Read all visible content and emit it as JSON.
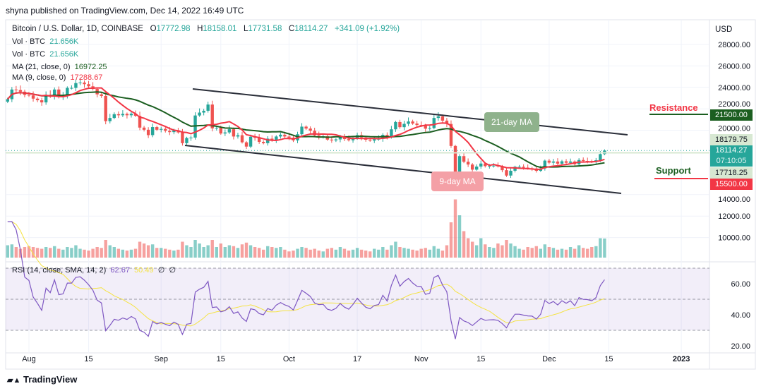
{
  "publish_line": "shyna published on TradingView.com, Dec 14, 2022 16:49 UTC",
  "legend": {
    "symbol": "Bitcoin / U.S. Dollar, 1D, COINBASE",
    "o_label": "O",
    "o": "17772.98",
    "h_label": "H",
    "h": "18158.01",
    "l_label": "L",
    "l": "17731.58",
    "c_label": "C",
    "c": "18114.27",
    "change": "+341.09 (+1.92%)",
    "vol1_label": "Vol · BTC",
    "vol1": "21.656K",
    "vol2_label": "Vol · BTC",
    "vol2": "21.656K",
    "ma21_label": "MA (21, close, 0)",
    "ma21": "16972.25",
    "ma9_label": "MA (9, close, 0)",
    "ma9": "17288.67"
  },
  "rsi_legend": {
    "label": "RSI (14, close, SMA, 14, 2)",
    "rsi": "62.67",
    "sma": "50.49",
    "extra1": "∅",
    "extra2": "∅"
  },
  "currency": "USD",
  "price_ticks": [
    "28000.00",
    "26000.00",
    "24000.00",
    "22000.00",
    "20000.00",
    "14000.00",
    "12000.00",
    "10000.00"
  ],
  "price_tick_values": [
    28000,
    26000,
    24000,
    22000,
    20000,
    14000,
    12000,
    10000
  ],
  "rsi_ticks": [
    "60.00",
    "40.00",
    "20.00"
  ],
  "rsi_tick_values": [
    60,
    40,
    20
  ],
  "badges": {
    "resistance": "21500.00",
    "high_ma": "18179.75",
    "last": "18114.27",
    "countdown": "07:10:05",
    "low_ma": "17718.25",
    "support": "15500.00"
  },
  "annotations": {
    "resistance": "Resistance",
    "support": "Support",
    "ma21": "21-day MA",
    "ma9": "9-day MA"
  },
  "time_ticks": [
    {
      "label": "Aug",
      "day": 5
    },
    {
      "label": "15",
      "day": 19
    },
    {
      "label": "Sep",
      "day": 36
    },
    {
      "label": "15",
      "day": 50
    },
    {
      "label": "Oct",
      "day": 66
    },
    {
      "label": "17",
      "day": 82
    },
    {
      "label": "Nov",
      "day": 97
    },
    {
      "label": "15",
      "day": 111
    },
    {
      "label": "Dec",
      "day": 127
    },
    {
      "label": "15",
      "day": 141
    },
    {
      "label": "2023",
      "day": 158
    }
  ],
  "colors": {
    "up": "#26a69a",
    "down": "#ef5350",
    "ma21": "#1b5e20",
    "ma9": "#f23645",
    "rsi": "#7e57c2",
    "rsi_sma": "#f5e342",
    "resistance_text": "#f23645",
    "support_text": "#1b5e20"
  },
  "brand": "TradingView",
  "chart_data": {
    "type": "candlestick",
    "start_date": "2022-07-27",
    "closes": [
      22900,
      23800,
      23750,
      23600,
      23300,
      23250,
      22950,
      22800,
      22600,
      23300,
      23150,
      23800,
      23150,
      23200,
      23950,
      23950,
      24400,
      24450,
      24300,
      24100,
      23850,
      23350,
      23200,
      20850,
      21150,
      21500,
      21400,
      21530,
      21400,
      21550,
      21350,
      20250,
      20050,
      19550,
      20300,
      20050,
      20130,
      19950,
      19830,
      19990,
      19800,
      18800,
      19280,
      19320,
      21380,
      21650,
      21820,
      22400,
      20180,
      20230,
      19700,
      19800,
      20100,
      19420,
      19540,
      18880,
      18480,
      19400,
      19300,
      18920,
      18800,
      19220,
      19080,
      19420,
      19590,
      19420,
      19310,
      19060,
      19630,
      20340,
      20160,
      19960,
      19530,
      19420,
      19440,
      19130,
      19060,
      19150,
      19380,
      19180,
      19070,
      19270,
      19550,
      19330,
      19120,
      19040,
      19170,
      19200,
      19570,
      19340,
      20090,
      20770,
      20290,
      20600,
      20820,
      20630,
      20490,
      20480,
      20150,
      20210,
      21150,
      21300,
      20900,
      20590,
      18540,
      15880,
      17590,
      17070,
      16810,
      16330,
      16620,
      16900,
      16660,
      16690,
      16700,
      16630,
      16280,
      15780,
      16230,
      16600,
      16600,
      16520,
      16460,
      16440,
      16220,
      16440,
      17170,
      16980,
      17090,
      16890,
      17110,
      16970,
      17090,
      16840,
      17230,
      17140,
      17130,
      17080,
      17210,
      17780,
      18114.27
    ],
    "volumes_k": [
      14,
      15,
      12,
      10,
      12,
      13,
      12,
      11,
      10,
      12,
      11,
      13,
      10,
      9,
      12,
      11,
      14,
      10,
      9,
      8,
      10,
      12,
      11,
      20,
      14,
      12,
      10,
      9,
      8,
      9,
      10,
      18,
      16,
      14,
      15,
      11,
      11,
      10,
      9,
      8,
      9,
      18,
      14,
      12,
      20,
      16,
      12,
      14,
      20,
      12,
      16,
      12,
      14,
      13,
      11,
      15,
      17,
      14,
      12,
      11,
      9,
      13,
      12,
      11,
      12,
      9,
      7,
      8,
      10,
      12,
      11,
      9,
      10,
      8,
      7,
      10,
      11,
      9,
      12,
      10,
      8,
      9,
      11,
      9,
      8,
      7,
      10,
      9,
      12,
      9,
      14,
      18,
      12,
      11,
      10,
      9,
      8,
      10,
      11,
      9,
      13,
      10,
      8,
      14,
      40,
      66,
      48,
      30,
      22,
      18,
      14,
      22,
      15,
      12,
      11,
      16,
      14,
      20,
      16,
      13,
      10,
      9,
      12,
      11,
      13,
      10,
      15,
      12,
      11,
      9,
      10,
      9,
      12,
      10,
      14,
      11,
      10,
      12,
      13,
      22,
      21.656
    ],
    "ylim": [
      9000,
      29000
    ],
    "rsi_period": 14,
    "rsi_sma_period": 14,
    "ma_periods": [
      21,
      9
    ]
  }
}
